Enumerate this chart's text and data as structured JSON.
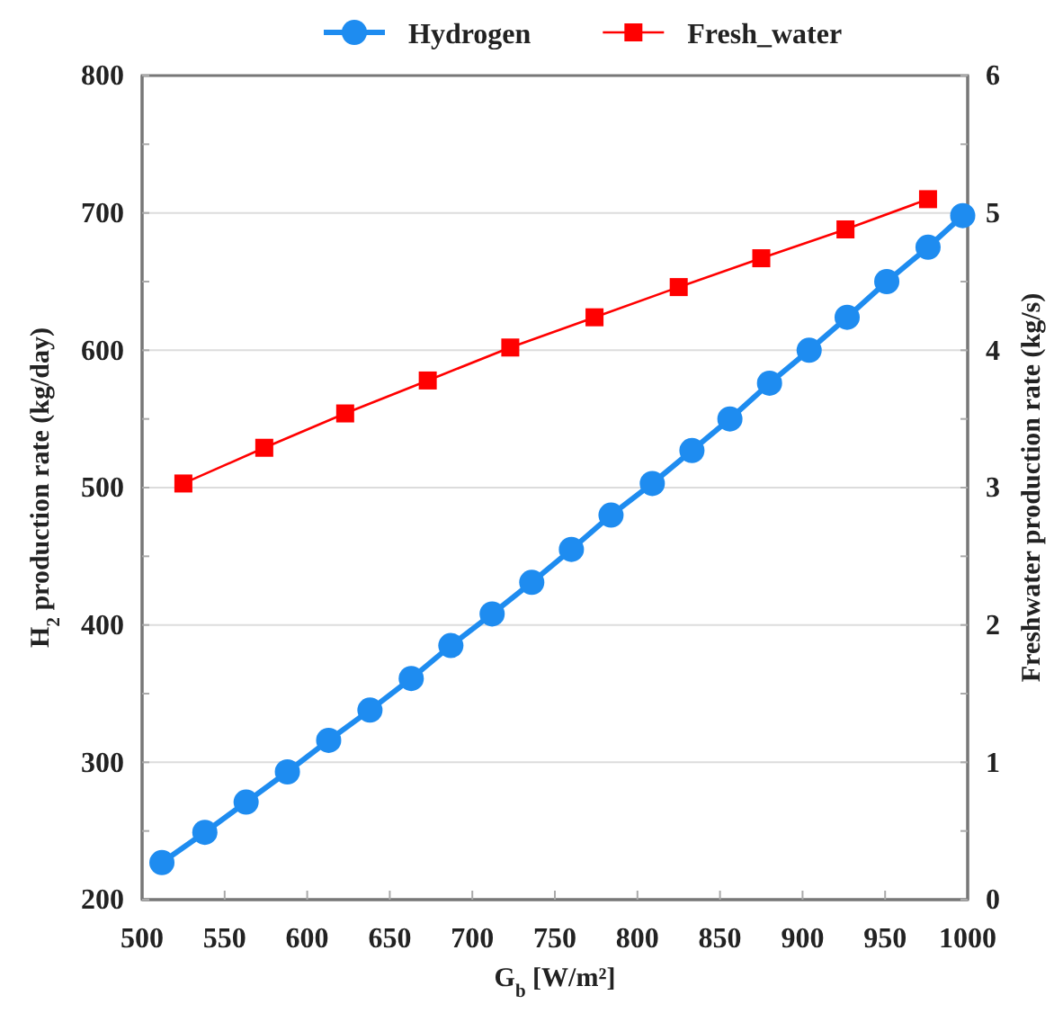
{
  "chart_data": {
    "type": "line",
    "xlabel": "G$_{b}$ [W/m²]",
    "ylabel": "H$_{2}$ production rate (kg/day)",
    "y2label": "Freshwater production rate (kg/s)",
    "xlim": [
      500,
      1000
    ],
    "xticks": [
      500,
      550,
      600,
      650,
      700,
      750,
      800,
      850,
      900,
      950,
      1000
    ],
    "ylim": [
      200,
      800
    ],
    "yticks": [
      200,
      {
        "value": 250,
        "label": null
      },
      300,
      {
        "value": 350,
        "label": null
      },
      400,
      {
        "value": 450,
        "label": null
      },
      500,
      {
        "value": 550,
        "label": null
      },
      600,
      {
        "value": 650,
        "label": null
      },
      700,
      {
        "value": 750,
        "label": null
      },
      800
    ],
    "y2lim": [
      0,
      6
    ],
    "y2ticks": [
      0,
      {
        "value": 0.5,
        "label": null
      },
      1,
      {
        "value": 1.5,
        "label": null
      },
      2,
      {
        "value": 2.5,
        "label": null
      },
      3,
      {
        "value": 3.5,
        "label": null
      },
      4,
      {
        "value": 4.5,
        "label": null
      },
      5,
      {
        "value": 5.5,
        "label": null
      },
      6
    ],
    "grid": "y",
    "legend": "top",
    "line_style": "solid",
    "series": [
      {
        "name": "Hydrogen",
        "color": "#1e8cf0",
        "marker": "circle",
        "x": [
          512,
          538,
          563,
          588,
          613,
          638,
          663,
          687,
          712,
          736,
          760,
          784,
          809,
          833,
          856,
          880,
          904,
          927,
          951,
          976,
          997
        ],
        "values": [
          227,
          249,
          271,
          293,
          316,
          338,
          361,
          385,
          408,
          431,
          455,
          480,
          503,
          527,
          550,
          576,
          600,
          624,
          650,
          675,
          698
        ]
      },
      {
        "name": "Fresh_water",
        "color": "#ff0000",
        "marker": "square",
        "axis": "y2",
        "x": [
          525,
          574,
          623,
          673,
          723,
          774,
          825,
          875,
          926,
          976
        ],
        "values": [
          3.03,
          3.29,
          3.54,
          3.78,
          4.02,
          4.24,
          4.46,
          4.67,
          4.88,
          5.1
        ]
      }
    ]
  }
}
